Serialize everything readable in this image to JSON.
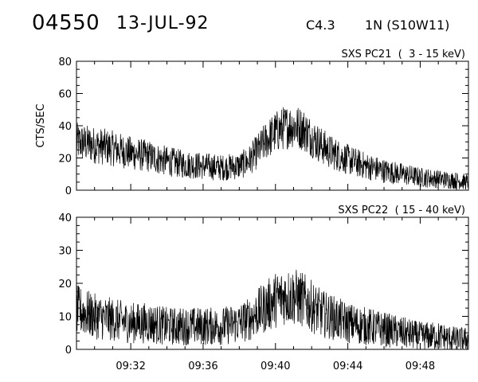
{
  "header": {
    "event_id": "04550",
    "date": "13-JUL-92",
    "flare_class": "C4.3",
    "flare_location": "1N (S10W11)"
  },
  "chart_data": [
    {
      "type": "line",
      "title": "SXS PC21  (  3 - 15 keV)",
      "ylabel": "CTS/SEC",
      "xlabel": "",
      "ylim": [
        0,
        80
      ],
      "yticks": [
        0,
        20,
        40,
        60,
        80
      ],
      "xlim": [
        "09:29:00",
        "09:50:40"
      ],
      "xticks": [
        "09:32",
        "09:36",
        "09:40",
        "09:44",
        "09:48"
      ],
      "grid": false,
      "series": [
        {
          "x": [
            "09:29:00",
            "09:30:00",
            "09:31:00",
            "09:32:00",
            "09:33:00",
            "09:34:00",
            "09:35:00",
            "09:36:00",
            "09:37:00",
            "09:38:00",
            "09:38:30",
            "09:39:00",
            "09:39:30",
            "09:40:00",
            "09:40:30",
            "09:41:00",
            "09:41:30",
            "09:42:00",
            "09:42:30",
            "09:43:00",
            "09:44:00",
            "09:45:00",
            "09:46:00",
            "09:47:00",
            "09:48:00",
            "09:49:00",
            "09:50:00",
            "09:50:40"
          ],
          "y": [
            30,
            28,
            26,
            23,
            21,
            18,
            16,
            15,
            14,
            15,
            18,
            24,
            31,
            36,
            39,
            40,
            38,
            33,
            28,
            24,
            19,
            15,
            12,
            10,
            8,
            7,
            6,
            5
          ]
        }
      ]
    },
    {
      "type": "line",
      "title": "SXS PC22  ( 15 - 40 keV)",
      "ylabel": "",
      "xlabel": "",
      "ylim": [
        0,
        40
      ],
      "yticks": [
        0,
        10,
        20,
        30,
        40
      ],
      "xlim": [
        "09:29:00",
        "09:50:40"
      ],
      "xticks": [
        "09:32",
        "09:36",
        "09:40",
        "09:44",
        "09:48"
      ],
      "grid": false,
      "series": [
        {
          "x": [
            "09:29:00",
            "09:30:00",
            "09:31:00",
            "09:32:00",
            "09:33:00",
            "09:34:00",
            "09:35:00",
            "09:36:00",
            "09:37:00",
            "09:38:00",
            "09:38:30",
            "09:39:00",
            "09:39:30",
            "09:40:00",
            "09:40:30",
            "09:41:00",
            "09:41:30",
            "09:42:00",
            "09:42:30",
            "09:43:00",
            "09:44:00",
            "09:45:00",
            "09:46:00",
            "09:47:00",
            "09:48:00",
            "09:49:00",
            "09:50:00",
            "09:50:40"
          ],
          "y": [
            12,
            10,
            9,
            8,
            8,
            7,
            7,
            7,
            7,
            8,
            9,
            11,
            13,
            15,
            16,
            16,
            15,
            13,
            11,
            10,
            8,
            7,
            6,
            5,
            4,
            4,
            3,
            3
          ]
        }
      ]
    }
  ]
}
